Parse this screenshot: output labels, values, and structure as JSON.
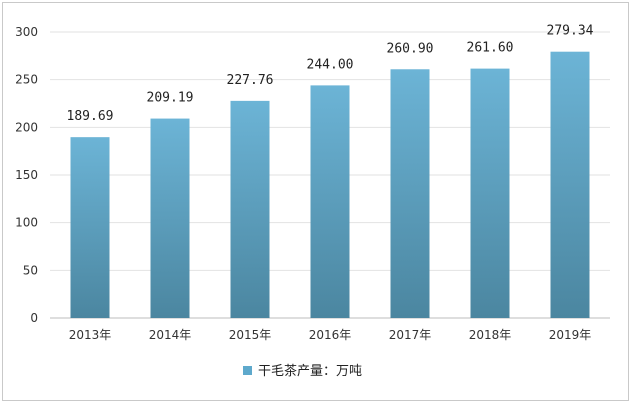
{
  "chart_data": {
    "type": "bar",
    "categories": [
      "2013年",
      "2014年",
      "2015年",
      "2016年",
      "2017年",
      "2018年",
      "2019年"
    ],
    "series": [
      {
        "name": "干毛茶产量：万吨",
        "values": [
          189.69,
          209.19,
          227.76,
          244.0,
          260.9,
          261.6,
          279.34
        ],
        "value_labels": [
          "189.69",
          "209.19",
          "227.76",
          "244.00",
          "260.90",
          "261.60",
          "279.34"
        ]
      }
    ],
    "ylim": [
      0,
      300
    ],
    "yticks": [
      "0",
      "50",
      "100",
      "150",
      "200",
      "250",
      "300"
    ],
    "grid": true,
    "legend_position": "bottom",
    "colors": {
      "bar_top": "#6cb4d6",
      "bar_bottom": "#4b86a0",
      "legend_swatch": "#5ea9cc",
      "grid": "#e2e2e2"
    }
  }
}
